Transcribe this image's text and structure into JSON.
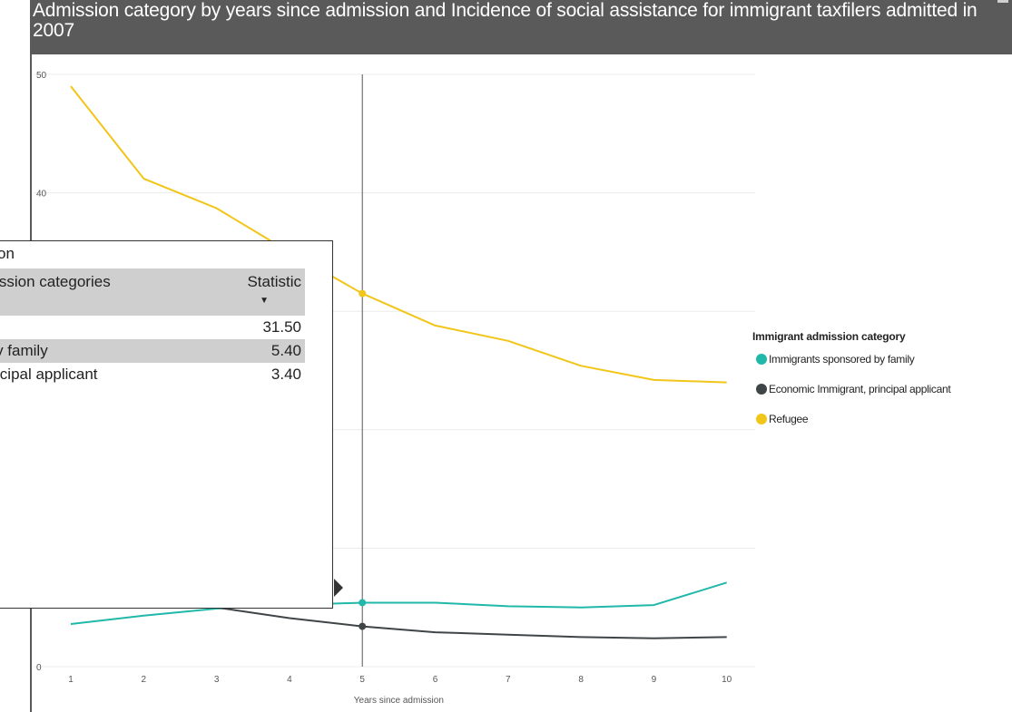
{
  "title": "Admission category by years since admission and Incidence of social assistance for immigrant taxfilers admitted in 2007",
  "legend": {
    "title": "Immigrant admission category",
    "items": [
      {
        "label": "Immigrants sponsored by family",
        "color": "#20b8a8"
      },
      {
        "label": "Economic Immigrant, principal applicant",
        "color": "#3f4547"
      },
      {
        "label": "Refugee",
        "color": "#f2c519"
      }
    ]
  },
  "tooltip": {
    "title": "on",
    "header_category": "admission categories",
    "header_statistic": "Statistic",
    "sort_icon": "triangle-down-icon",
    "rows": [
      {
        "category": "",
        "value": "31.50"
      },
      {
        "category": "ed by family",
        "value": "5.40"
      },
      {
        "category": ", principal applicant",
        "value": "3.40"
      }
    ]
  },
  "chart_data": {
    "type": "line",
    "title": "Admission category by years since admission and Incidence of social assistance for immigrant taxfilers admitted in 2007",
    "xlabel": "Years since admission",
    "ylabel": "",
    "x": [
      1,
      2,
      3,
      4,
      5,
      6,
      7,
      8,
      9,
      10
    ],
    "ylim": [
      0,
      50
    ],
    "yticks": [
      0,
      10,
      20,
      30,
      40,
      50
    ],
    "ytick_labels": [
      "0",
      "",
      "",
      "",
      "40",
      "50"
    ],
    "grid": true,
    "legend_position": "right",
    "hover_x": 5,
    "series": [
      {
        "name": "Immigrants sponsored by family",
        "color": "#20b8a8",
        "values": [
          3.6,
          4.3,
          4.9,
          5.2,
          5.4,
          5.4,
          5.1,
          5.0,
          5.2,
          7.1
        ]
      },
      {
        "name": "Economic Immigrant, principal applicant",
        "color": "#3f4547",
        "values": [
          null,
          null,
          5.0,
          4.1,
          3.4,
          2.9,
          2.7,
          2.5,
          2.4,
          2.5
        ]
      },
      {
        "name": "Refugee",
        "color": "#f2c519",
        "values": [
          49.0,
          41.2,
          38.7,
          35.0,
          31.5,
          28.8,
          27.5,
          25.4,
          24.2,
          24.0
        ]
      }
    ]
  }
}
